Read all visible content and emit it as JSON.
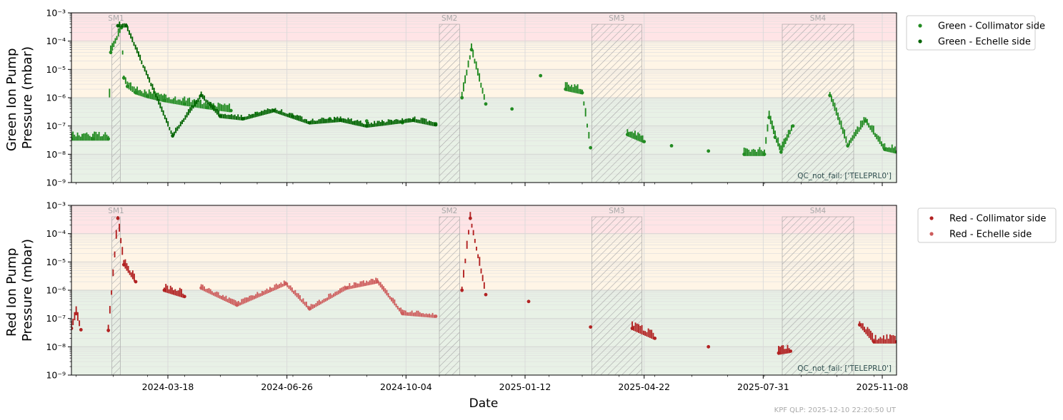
{
  "colors": {
    "green_collimator": "#228b22",
    "green_echelle": "#006400",
    "red_collimator": "#b22222",
    "red_echelle": "#cd5c5c",
    "band_bad": "#ffe4e6",
    "band_warn": "#fff5e6",
    "band_good": "#e8f1e6",
    "maintenance_hatch": "#a9a9a9"
  },
  "x_axis": {
    "label": "Date",
    "range": [
      "2023-12-28",
      "2025-11-20"
    ],
    "ticks": [
      "2024-03-18",
      "2024-06-26",
      "2024-10-04",
      "2025-01-12",
      "2025-04-22",
      "2025-07-31",
      "2025-11-08"
    ]
  },
  "maintenance_periods": [
    {
      "label": "SM1",
      "start": "2024-01-31",
      "end": "2024-02-07"
    },
    {
      "label": "SM2",
      "start": "2024-11-01",
      "end": "2024-11-18"
    },
    {
      "label": "SM3",
      "start": "2025-03-09",
      "end": "2025-04-20"
    },
    {
      "label": "SM4",
      "start": "2025-08-16",
      "end": "2025-10-15"
    }
  ],
  "footer": "KPF QLP: 2025-12-10 22:20:50 UT",
  "chart_data": [
    {
      "type": "scatter",
      "ylabel_line1": "Green Ion Pump",
      "ylabel_line2": "Pressure (mbar)",
      "yscale": "log",
      "ylim": [
        1e-09,
        0.001
      ],
      "ytick_labels": [
        "10⁻⁹",
        "10⁻⁸",
        "10⁻⁷",
        "10⁻⁶",
        "10⁻⁵",
        "10⁻⁴",
        "10⁻³"
      ],
      "thresholds": {
        "good_below": 1e-06,
        "warn_below": 0.0001
      },
      "qc_annotation": "QC_not_fail: ['TELEPRL0']",
      "legend_position": "outside-top-right",
      "series": [
        {
          "name": "Green - Collimator side",
          "color_key": "green_collimator",
          "points": [
            [
              "2023-12-28",
              3.5e-08
            ],
            [
              "2024-01-15",
              3.5e-08
            ],
            [
              "2024-01-28",
              3.5e-08
            ],
            [
              "2024-01-30",
              4e-05
            ],
            [
              "2024-02-08",
              0.0003
            ],
            [
              "2024-02-10",
              5e-06
            ],
            [
              "2024-02-13",
              2.5e-06
            ],
            [
              "2024-02-20",
              1.5e-06
            ],
            [
              "2024-03-01",
              1.1e-06
            ],
            [
              "2024-03-15",
              8e-07
            ],
            [
              "2024-04-01",
              6e-07
            ],
            [
              "2024-04-20",
              4.5e-07
            ],
            [
              "2024-05-10",
              3.5e-07
            ],
            [
              "2024-06-01",
              2.8e-07
            ],
            [
              "2024-07-01",
              2.2e-07
            ],
            [
              "2024-08-01",
              1.8e-07
            ],
            [
              "2024-09-01",
              1.5e-07
            ],
            [
              "2024-10-01",
              1.3e-07
            ],
            [
              "2024-10-29",
              1.2e-07
            ],
            [
              "2024-11-20",
              1e-06
            ],
            [
              "2024-11-28",
              5e-05
            ],
            [
              "2024-12-10",
              6e-07
            ],
            [
              "2025-01-01",
              4e-07
            ],
            [
              "2025-01-25",
              6e-06
            ],
            [
              "2025-02-15",
              2e-06
            ],
            [
              "2025-03-01",
              1.5e-06
            ],
            [
              "2025-03-08",
              1.7e-08
            ],
            [
              "2025-04-08",
              5e-08
            ],
            [
              "2025-04-22",
              2.8e-08
            ],
            [
              "2025-05-15",
              2e-08
            ],
            [
              "2025-06-15",
              1.3e-08
            ],
            [
              "2025-07-15",
              1e-08
            ],
            [
              "2025-08-01",
              1e-08
            ],
            [
              "2025-08-05",
              2e-07
            ],
            [
              "2025-08-10",
              4e-08
            ],
            [
              "2025-08-15",
              1.2e-08
            ],
            [
              "2025-08-25",
              1e-07
            ],
            [
              "2025-09-25",
              1.2e-06
            ],
            [
              "2025-10-10",
              2e-08
            ],
            [
              "2025-10-25",
              1.5e-07
            ],
            [
              "2025-11-10",
              1.5e-08
            ],
            [
              "2025-11-20",
              1.2e-08
            ]
          ]
        },
        {
          "name": "Green - Echelle side",
          "color_key": "green_echelle",
          "points": [
            [
              "2024-02-05",
              0.00035
            ],
            [
              "2024-02-12",
              0.00035
            ],
            [
              "2024-03-22",
              4.5e-08
            ],
            [
              "2024-04-15",
              1.2e-06
            ],
            [
              "2024-05-01",
              2.2e-07
            ],
            [
              "2024-05-20",
              1.8e-07
            ],
            [
              "2024-06-15",
              3.5e-07
            ],
            [
              "2024-07-15",
              1.3e-07
            ],
            [
              "2024-08-10",
              1.6e-07
            ],
            [
              "2024-09-01",
              1e-07
            ],
            [
              "2024-10-10",
              1.6e-07
            ],
            [
              "2024-10-29",
              1.1e-07
            ]
          ]
        }
      ]
    },
    {
      "type": "scatter",
      "ylabel_line1": "Red Ion Pump",
      "ylabel_line2": "Pressure (mbar)",
      "yscale": "log",
      "ylim": [
        1e-09,
        0.001
      ],
      "ytick_labels": [
        "10⁻⁹",
        "10⁻⁸",
        "10⁻⁷",
        "10⁻⁶",
        "10⁻⁵",
        "10⁻⁴",
        "10⁻³"
      ],
      "thresholds": {
        "good_below": 1e-06,
        "warn_below": 0.0001
      },
      "qc_annotation": "QC_not_fail: ['TELEPRL0']",
      "legend_position": "outside-top-right",
      "series": [
        {
          "name": "Red - Collimator side",
          "color_key": "red_collimator",
          "points": [
            [
              "2023-12-28",
              4.5e-08
            ],
            [
              "2024-01-01",
              1.5e-07
            ],
            [
              "2024-01-05",
              4e-08
            ],
            [
              "2024-01-28",
              3.8e-08
            ],
            [
              "2024-02-05",
              0.00035
            ],
            [
              "2024-02-10",
              8e-06
            ],
            [
              "2024-02-20",
              2e-06
            ],
            [
              "2024-03-15",
              1e-06
            ],
            [
              "2024-04-01",
              6e-07
            ],
            [
              "2024-11-20",
              1e-06
            ],
            [
              "2024-11-27",
              0.00035
            ],
            [
              "2024-12-10",
              7e-07
            ],
            [
              "2025-01-15",
              4e-07
            ],
            [
              "2025-03-08",
              5e-08
            ],
            [
              "2025-04-12",
              4.5e-08
            ],
            [
              "2025-05-01",
              2e-08
            ],
            [
              "2025-06-15",
              1e-08
            ],
            [
              "2025-08-13",
              6e-09
            ],
            [
              "2025-08-23",
              7e-09
            ],
            [
              "2025-10-20",
              6e-08
            ],
            [
              "2025-11-01",
              1.5e-08
            ],
            [
              "2025-11-20",
              1.5e-08
            ]
          ]
        },
        {
          "name": "Red - Echelle side",
          "color_key": "red_echelle",
          "points": [
            [
              "2024-04-15",
              1.2e-06
            ],
            [
              "2024-05-15",
              3e-07
            ],
            [
              "2024-06-25",
              1.7e-06
            ],
            [
              "2024-07-15",
              2.2e-07
            ],
            [
              "2024-08-15",
              1.2e-06
            ],
            [
              "2024-09-10",
              2e-06
            ],
            [
              "2024-10-01",
              1.5e-07
            ],
            [
              "2024-10-29",
              1.2e-07
            ]
          ]
        }
      ]
    }
  ]
}
